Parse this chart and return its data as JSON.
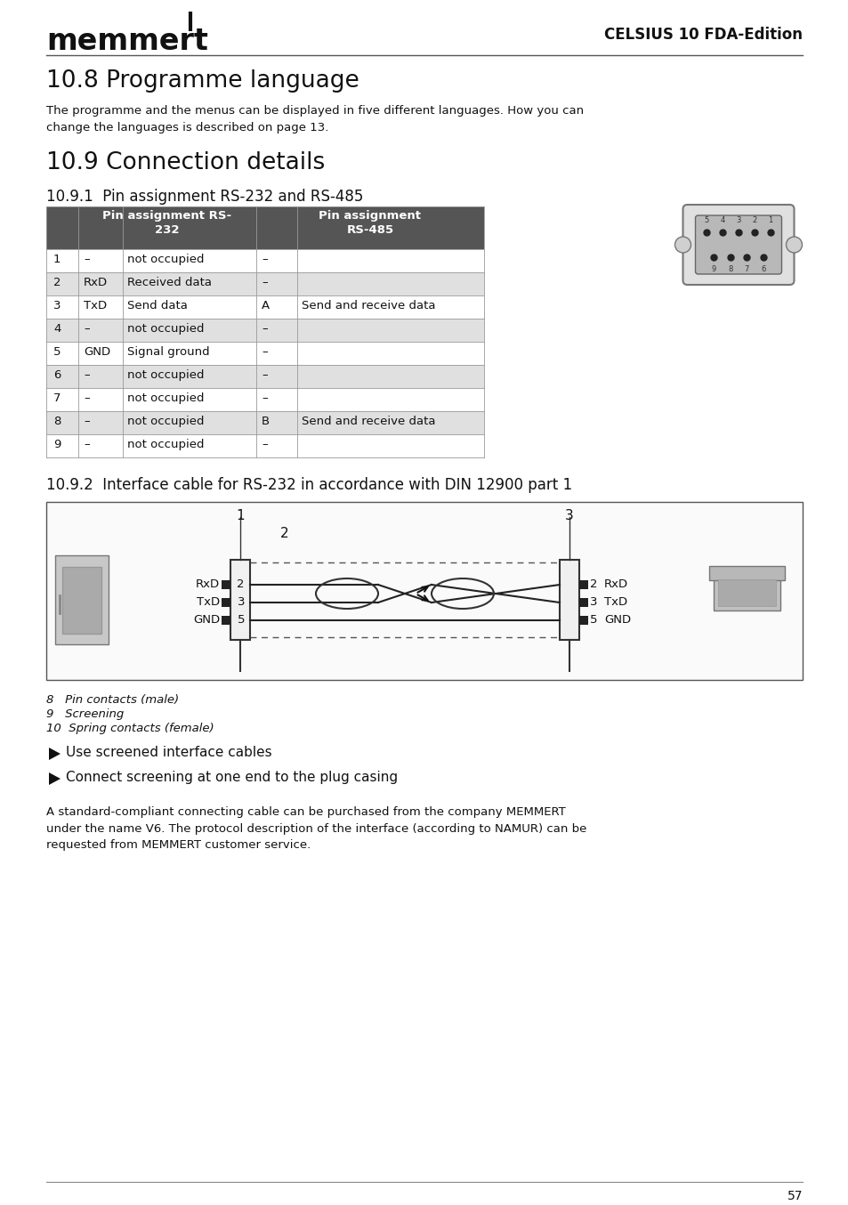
{
  "page_bg": "#ffffff",
  "logo_text": "memmert",
  "header_right": "CELSIUS 10 FDA-Edition",
  "section_88_title": "10.8 Programme language",
  "section_88_body": "The programme and the menus can be displayed in five different languages. How you can\nchange the languages is described on page 13.",
  "section_99_title": "10.9 Connection details",
  "section_991_title": "10.9.1  Pin assignment RS-232 and RS-485",
  "table_header_bg": "#555555",
  "table_row_bg_alt": "#e0e0e0",
  "table_row_bg_white": "#ffffff",
  "table_rows": [
    [
      "1",
      "–",
      "not occupied",
      "–",
      ""
    ],
    [
      "2",
      "RxD",
      "Received data",
      "–",
      ""
    ],
    [
      "3",
      "TxD",
      "Send data",
      "A",
      "Send and receive data"
    ],
    [
      "4",
      "–",
      "not occupied",
      "–",
      ""
    ],
    [
      "5",
      "GND",
      "Signal ground",
      "–",
      ""
    ],
    [
      "6",
      "–",
      "not occupied",
      "–",
      ""
    ],
    [
      "7",
      "–",
      "not occupied",
      "–",
      ""
    ],
    [
      "8",
      "–",
      "not occupied",
      "B",
      "Send and receive data"
    ],
    [
      "9",
      "–",
      "not occupied",
      "–",
      ""
    ]
  ],
  "section_992_title": "10.9.2  Interface cable for RS-232 in accordance with DIN 12900 part 1",
  "footnotes": [
    "8   Pin contacts (male)",
    "9   Screening",
    "10  Spring contacts (female)"
  ],
  "bullets": [
    "Use screened interface cables",
    "Connect screening at one end to the plug casing"
  ],
  "body_text": "A standard-compliant connecting cable can be purchased from the company MEMMERT\nunder the name V6. The protocol description of the interface (according to NAMUR) can be\nrequested from MEMMERT customer service.",
  "page_number": "57"
}
